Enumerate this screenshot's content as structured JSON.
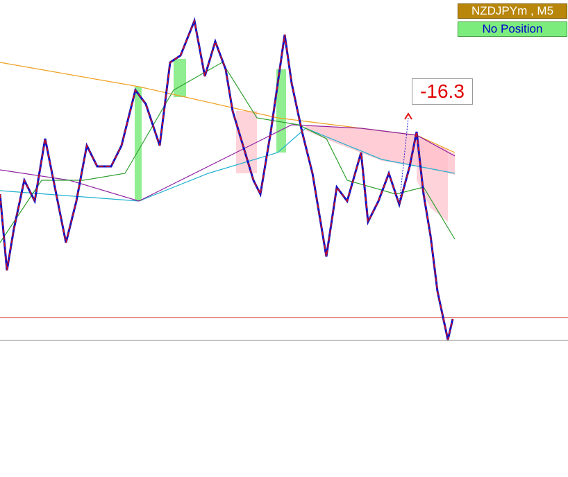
{
  "symbol_label": "NZDJPYm , M5",
  "position_label": "No Position",
  "pips_label": "-16.3"
}
